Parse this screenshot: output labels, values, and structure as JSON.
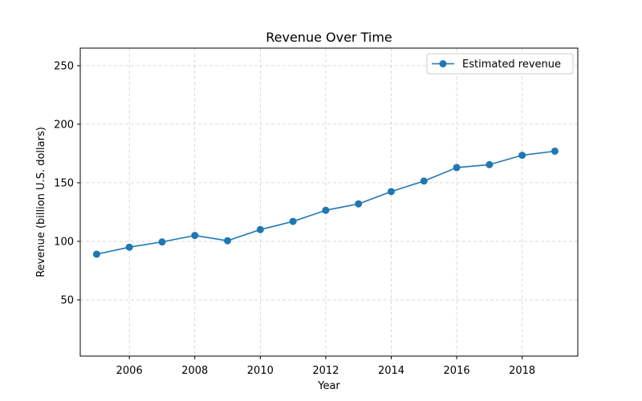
{
  "chart_data": {
    "type": "line",
    "title": "Revenue Over Time",
    "xlabel": "Year",
    "ylabel": "Revenue (billion U.S. dollars)",
    "xlim": [
      2004.5,
      2019.7
    ],
    "ylim": [
      2,
      265
    ],
    "xticks": [
      2006,
      2008,
      2010,
      2012,
      2014,
      2016,
      2018
    ],
    "yticks": [
      50,
      100,
      150,
      200,
      250
    ],
    "grid": true,
    "legend_position": "top-right",
    "series": [
      {
        "name": "Estimated revenue",
        "color": "#1f77b4",
        "x": [
          2005,
          2006,
          2007,
          2008,
          2009,
          2010,
          2011,
          2012,
          2013,
          2014,
          2015,
          2016,
          2017,
          2018,
          2019
        ],
        "y": [
          89,
          95,
          99.5,
          105,
          100.5,
          110,
          117,
          126.5,
          132,
          142.5,
          151.5,
          163,
          165.5,
          173.5,
          177
        ]
      }
    ]
  }
}
